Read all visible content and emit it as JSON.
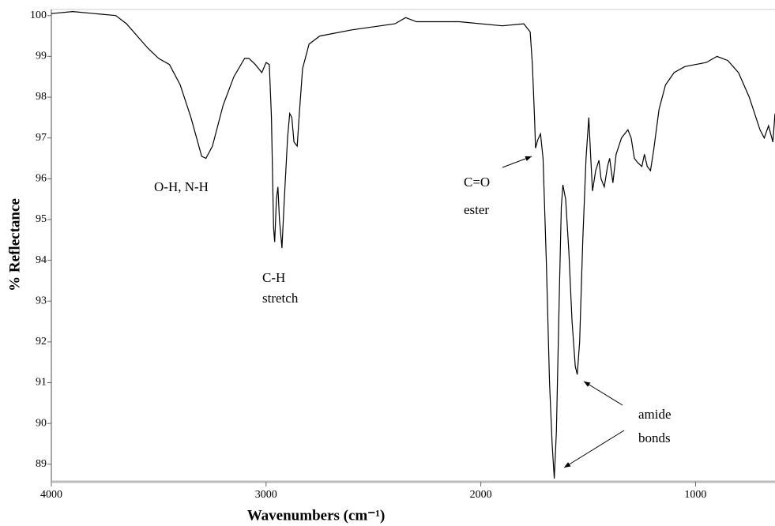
{
  "chart_data": {
    "type": "line",
    "xlabel": "Wavenumbers (cm⁻¹)",
    "ylabel": "% Reflectance",
    "xlim": [
      4000,
      630
    ],
    "xticks": [
      4000,
      3000,
      2000,
      1000
    ],
    "ylim": [
      88.57,
      100.15
    ],
    "yticks": [
      89,
      90,
      91,
      92,
      93,
      94,
      95,
      96,
      97,
      98,
      99,
      100
    ],
    "annotations": [
      [
        "O-H, N-H"
      ],
      [
        "C-H",
        "stretch"
      ],
      [
        "C=O",
        "ester"
      ],
      [
        "amide",
        "bonds"
      ]
    ],
    "x": [
      4000,
      3900,
      3800,
      3700,
      3650,
      3550,
      3500,
      3450,
      3400,
      3350,
      3300,
      3280,
      3250,
      3200,
      3150,
      3100,
      3080,
      3050,
      3020,
      3000,
      2985,
      2975,
      2965,
      2960,
      2952,
      2945,
      2938,
      2926,
      2915,
      2900,
      2890,
      2880,
      2870,
      2855,
      2845,
      2830,
      2800,
      2750,
      2600,
      2400,
      2350,
      2300,
      2100,
      1900,
      1800,
      1770,
      1760,
      1750,
      1745,
      1735,
      1722,
      1710,
      1695,
      1680,
      1668,
      1658,
      1648,
      1635,
      1625,
      1618,
      1605,
      1590,
      1575,
      1560,
      1551,
      1540,
      1525,
      1510,
      1497,
      1488,
      1480,
      1465,
      1450,
      1440,
      1425,
      1410,
      1400,
      1385,
      1370,
      1345,
      1315,
      1300,
      1285,
      1270,
      1250,
      1238,
      1225,
      1210,
      1195,
      1170,
      1140,
      1100,
      1050,
      1000,
      950,
      900,
      850,
      800,
      750,
      700,
      680,
      660,
      640,
      630
    ],
    "series": [
      {
        "color": "#000000",
        "values": [
          100.05,
          100.1,
          100.05,
          100.0,
          99.8,
          99.2,
          98.95,
          98.8,
          98.3,
          97.5,
          96.55,
          96.5,
          96.8,
          97.8,
          98.5,
          98.95,
          98.95,
          98.8,
          98.6,
          98.85,
          98.8,
          97.5,
          94.8,
          94.45,
          95.5,
          95.8,
          95.0,
          94.3,
          95.5,
          97.0,
          97.6,
          97.5,
          96.9,
          96.8,
          97.6,
          98.7,
          99.3,
          99.5,
          99.65,
          99.8,
          99.95,
          99.85,
          99.85,
          99.75,
          99.8,
          99.6,
          98.8,
          97.5,
          96.75,
          96.95,
          97.1,
          96.5,
          94.0,
          91.0,
          89.5,
          88.65,
          89.8,
          93.0,
          95.3,
          95.85,
          95.5,
          94.2,
          92.5,
          91.4,
          91.2,
          92.0,
          94.5,
          96.5,
          97.5,
          96.5,
          95.7,
          96.2,
          96.45,
          96.0,
          95.8,
          96.3,
          96.5,
          95.9,
          96.6,
          97.0,
          97.2,
          97.0,
          96.5,
          96.4,
          96.3,
          96.6,
          96.3,
          96.2,
          96.7,
          97.7,
          98.3,
          98.6,
          98.75,
          98.8,
          98.85,
          99.0,
          98.9,
          98.6,
          98.0,
          97.2,
          97.0,
          97.3,
          96.9,
          97.6
        ]
      }
    ]
  }
}
